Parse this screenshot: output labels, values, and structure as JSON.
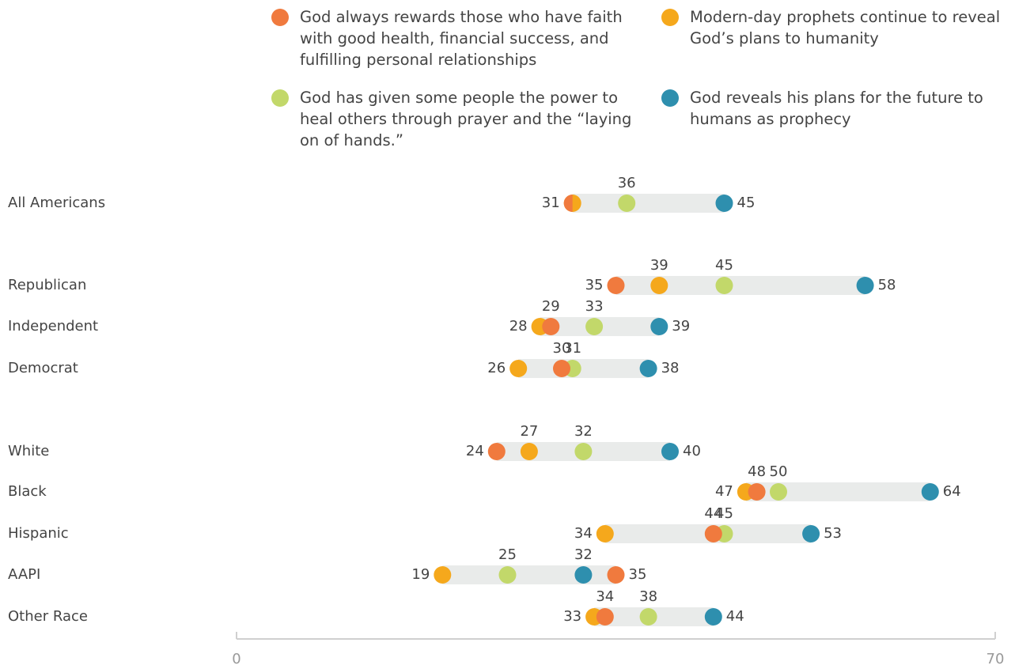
{
  "chart_data": {
    "type": "dot",
    "categories": [
      "All Americans",
      "Republican",
      "Independent",
      "Democrat",
      "White",
      "Black",
      "Hispanic",
      "AAPI",
      "Other Race"
    ],
    "series": [
      {
        "name": "God always rewards those who have faith with good health, financial success, and fulfilling personal relationships",
        "color": "#f07a3e",
        "values": [
          31,
          35,
          29,
          30,
          24,
          48,
          44,
          35,
          34
        ]
      },
      {
        "name": "Modern-day prophets continue to reveal God’s plans to humanity",
        "color": "#f5a81c",
        "values": [
          31,
          39,
          28,
          26,
          27,
          47,
          34,
          19,
          33
        ]
      },
      {
        "name": "God has given some people the power to heal others through prayer and the “laying on of hands.”",
        "color": "#c2d86a",
        "values": [
          36,
          45,
          33,
          31,
          32,
          50,
          45,
          25,
          38
        ]
      },
      {
        "name": "God reveals his plans for the future to humans as prophecy",
        "color": "#2e8fae",
        "values": [
          45,
          58,
          39,
          38,
          40,
          64,
          53,
          32,
          44
        ]
      }
    ],
    "xlim": [
      0,
      70
    ],
    "xticks": [
      0,
      70
    ]
  }
}
